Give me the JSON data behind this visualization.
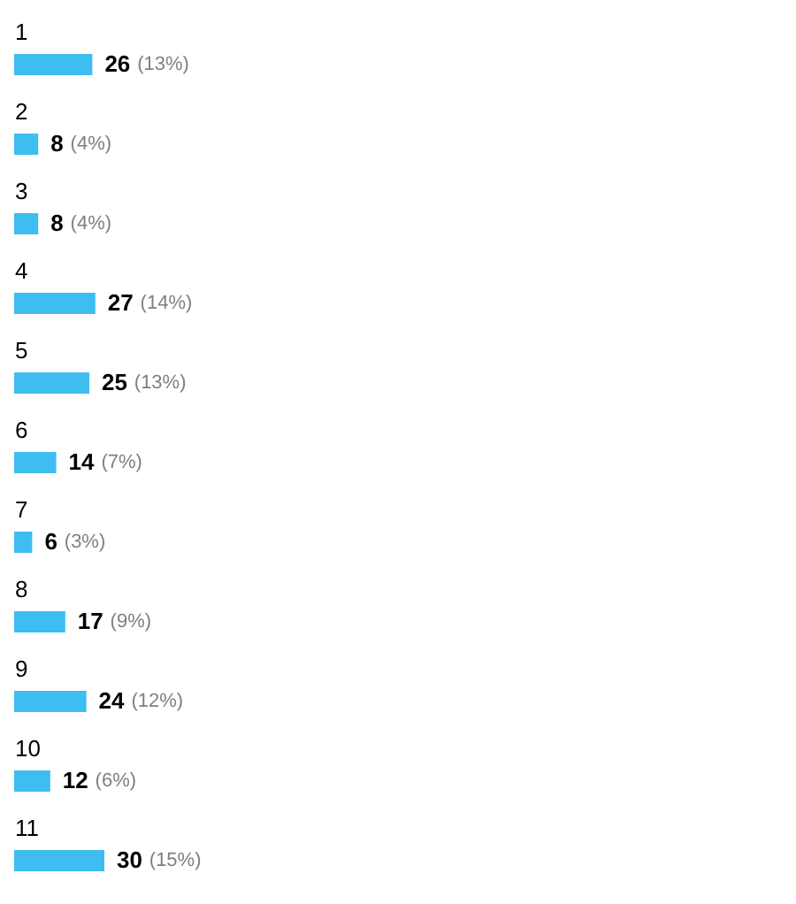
{
  "chart_data": {
    "type": "bar",
    "orientation": "horizontal",
    "categories": [
      "1",
      "2",
      "3",
      "4",
      "5",
      "6",
      "7",
      "8",
      "9",
      "10",
      "11"
    ],
    "values": [
      26,
      8,
      8,
      27,
      25,
      14,
      6,
      17,
      24,
      12,
      30
    ],
    "color": "#3dbdf0",
    "data_labels": true,
    "annotations": [
      {
        "text": "(13%)",
        "x": 26,
        "y": "1"
      },
      {
        "text": "(4%)",
        "x": 8,
        "y": "2"
      },
      {
        "text": "(4%)",
        "x": 8,
        "y": "3"
      },
      {
        "text": "(14%)",
        "x": 27,
        "y": "4"
      },
      {
        "text": "(13%)",
        "x": 25,
        "y": "5"
      },
      {
        "text": "(7%)",
        "x": 14,
        "y": "6"
      },
      {
        "text": "(3%)",
        "x": 6,
        "y": "7"
      },
      {
        "text": "(9%)",
        "x": 17,
        "y": "8"
      },
      {
        "text": "(12%)",
        "x": 24,
        "y": "9"
      },
      {
        "text": "(6%)",
        "x": 12,
        "y": "10"
      },
      {
        "text": "(15%)",
        "x": 30,
        "y": "11"
      }
    ],
    "tick_labels": "y"
  }
}
